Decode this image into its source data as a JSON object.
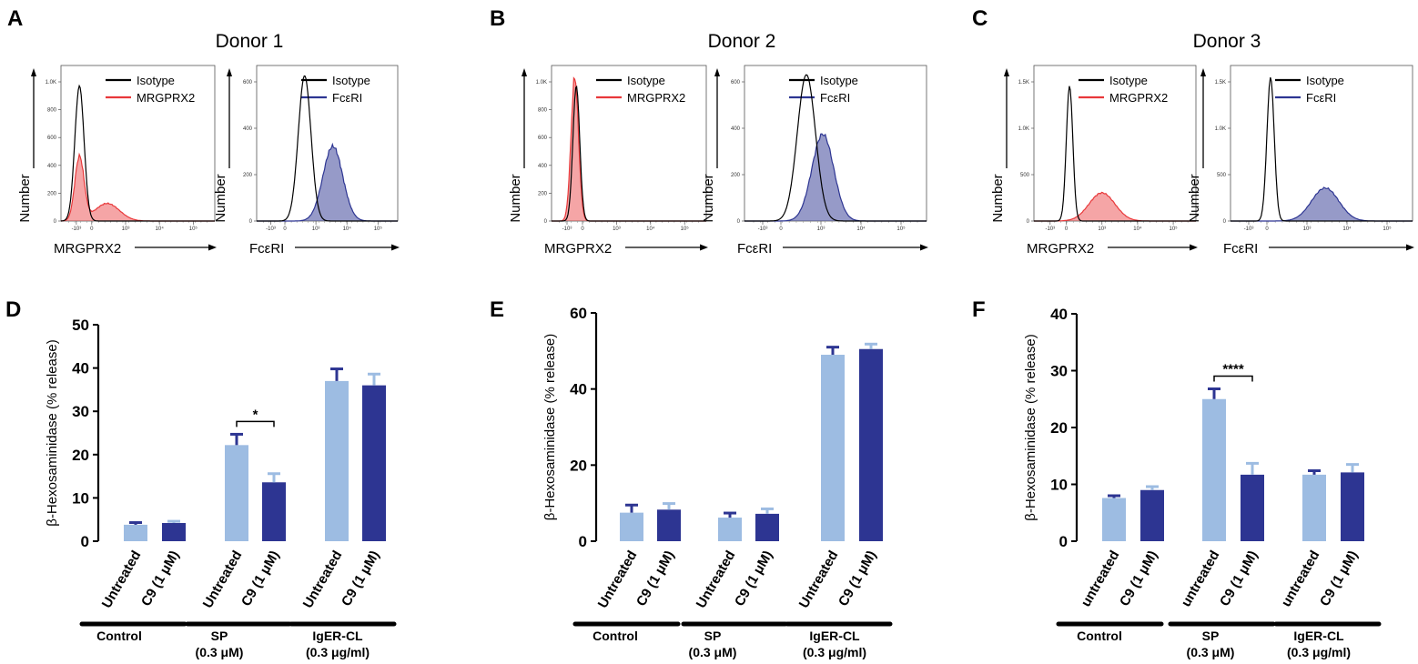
{
  "figure": {
    "panel_letters": [
      "A",
      "B",
      "C",
      "D",
      "E",
      "F"
    ]
  },
  "chart_data": [
    {
      "panel": "A",
      "type": "histogram",
      "title": "Donor 1",
      "histograms": [
        {
          "ylabel": "Number",
          "xlabel": "MRGPRX2",
          "y_ticks": [
            "1.0K",
            "800",
            "600",
            "400",
            "200",
            "0"
          ],
          "x_ticks": [
            "-10³",
            "0",
            "10³",
            "10⁴",
            "10⁵"
          ],
          "ymax": 1150,
          "series": [
            {
              "name": "Isotype",
              "color": "#000000",
              "fill": false,
              "center": 0.12,
              "width": 0.03,
              "peak": 1000
            },
            {
              "name": "MRGPRX2",
              "color": "#e8383a",
              "fill": true,
              "center": 0.12,
              "width": 0.03,
              "peak": 470,
              "shoulder_center": 0.3,
              "shoulder_width": 0.08,
              "shoulder_peak": 130
            }
          ]
        },
        {
          "ylabel": "Number",
          "xlabel": "FcεRI",
          "y_ticks": [
            "600",
            "400",
            "200",
            "0"
          ],
          "x_ticks": [
            "-10³",
            "0",
            "10³",
            "10⁴",
            "10⁵"
          ],
          "ymax": 760,
          "series": [
            {
              "name": "Isotype",
              "color": "#000000",
              "fill": false,
              "center": 0.34,
              "width": 0.045,
              "peak": 710
            },
            {
              "name": "FcεRI",
              "color": "#2d3592",
              "fill": true,
              "center": 0.54,
              "width": 0.07,
              "peak": 365
            }
          ]
        }
      ]
    },
    {
      "panel": "B",
      "type": "histogram",
      "title": "Donor 2",
      "histograms": [
        {
          "ylabel": "Number",
          "xlabel": "MRGPRX2",
          "y_ticks": [
            "1.0K",
            "800",
            "600",
            "400",
            "200",
            "0"
          ],
          "x_ticks": [
            "-10³",
            "0",
            "10³",
            "10⁴",
            "10⁵"
          ],
          "ymax": 1150,
          "series": [
            {
              "name": "Isotype",
              "color": "#000000",
              "fill": false,
              "center": 0.16,
              "width": 0.022,
              "peak": 1000
            },
            {
              "name": "MRGPRX2",
              "color": "#e8383a",
              "fill": true,
              "center": 0.15,
              "width": 0.024,
              "peak": 1060
            }
          ]
        },
        {
          "ylabel": "Number",
          "xlabel": "FcεRI",
          "y_ticks": [
            "600",
            "400",
            "200",
            "0"
          ],
          "x_ticks": [
            "-10³",
            "0",
            "10³",
            "10⁴",
            "10⁵"
          ],
          "ymax": 680,
          "series": [
            {
              "name": "Isotype",
              "color": "#000000",
              "fill": false,
              "center": 0.34,
              "width": 0.05,
              "peak": 640
            },
            {
              "name": "FcεRI",
              "color": "#2d3592",
              "fill": true,
              "center": 0.43,
              "width": 0.06,
              "peak": 380
            }
          ]
        }
      ]
    },
    {
      "panel": "C",
      "type": "histogram",
      "title": "Donor 3",
      "histograms": [
        {
          "ylabel": "Number",
          "xlabel": "MRGPRX2",
          "y_ticks": [
            "1.5K",
            "1.0K",
            "500",
            "0"
          ],
          "x_ticks": [
            "-10³",
            "0",
            "10³",
            "10⁴",
            "10⁵"
          ],
          "ymax": 1600,
          "series": [
            {
              "name": "Isotype",
              "color": "#000000",
              "fill": false,
              "center": 0.22,
              "width": 0.02,
              "peak": 1390
            },
            {
              "name": "MRGPRX2",
              "color": "#e8383a",
              "fill": true,
              "center": 0.42,
              "width": 0.08,
              "peak": 290
            }
          ]
        },
        {
          "ylabel": "Number",
          "xlabel": "FcεRI",
          "y_ticks": [
            "1.5K",
            "1.0K",
            "500",
            "0"
          ],
          "x_ticks": [
            "-10³",
            "0",
            "10³",
            "10⁴",
            "10⁵"
          ],
          "ymax": 1600,
          "series": [
            {
              "name": "Isotype",
              "color": "#000000",
              "fill": false,
              "center": 0.22,
              "width": 0.02,
              "peak": 1480
            },
            {
              "name": "FcεRI",
              "color": "#2d3592",
              "fill": true,
              "center": 0.52,
              "width": 0.075,
              "peak": 340
            }
          ]
        }
      ]
    },
    {
      "panel": "D",
      "type": "bar",
      "ylabel": "β-Hexosaminidase (% release)",
      "ylim": [
        0,
        50
      ],
      "y_ticks": [
        "0",
        "10",
        "20",
        "30",
        "40",
        "50"
      ],
      "categories": [
        "Untreated",
        "C9 (1 μM)",
        "Untreated",
        "C9 (1 μM)",
        "Untreated",
        "C9 (1 μM)"
      ],
      "values": [
        3.8,
        4.2,
        22.2,
        13.6,
        37.0,
        36.0
      ],
      "errors": [
        0.5,
        0.4,
        2.5,
        2.0,
        2.8,
        2.6
      ],
      "colors": [
        "#9dbce2",
        "#2d3592",
        "#9dbce2",
        "#2d3592",
        "#9dbce2",
        "#2d3592"
      ],
      "groups": [
        {
          "line1": "Control",
          "line2": ""
        },
        {
          "line1": "SP",
          "line2": "(0.3 μM)"
        },
        {
          "line1": "IgER-CL",
          "line2": "(0.3 μg/ml)"
        }
      ],
      "significance": [
        {
          "bars": [
            2,
            3
          ],
          "label": "*"
        }
      ]
    },
    {
      "panel": "E",
      "type": "bar",
      "ylabel": "β-Hexosaminidase (% release)",
      "ylim": [
        0,
        60
      ],
      "y_ticks": [
        "0",
        "20",
        "40",
        "60"
      ],
      "categories": [
        "Untreated",
        "C9 (1 μM)",
        "Untreated",
        "C9 (1 μM)",
        "Untreated",
        "C9 (1 μM)"
      ],
      "values": [
        7.5,
        8.3,
        6.2,
        7.2,
        49.0,
        50.5
      ],
      "errors": [
        2.0,
        1.6,
        1.2,
        1.3,
        2.0,
        1.3
      ],
      "colors": [
        "#9dbce2",
        "#2d3592",
        "#9dbce2",
        "#2d3592",
        "#9dbce2",
        "#2d3592"
      ],
      "groups": [
        {
          "line1": "Control",
          "line2": ""
        },
        {
          "line1": "SP",
          "line2": "(0.3 μM)"
        },
        {
          "line1": "IgER-CL",
          "line2": "(0.3 μg/ml)"
        }
      ],
      "significance": []
    },
    {
      "panel": "F",
      "type": "bar",
      "ylabel": "β-Hexosaminidase (% release)",
      "ylim": [
        0,
        40
      ],
      "y_ticks": [
        "0",
        "10",
        "20",
        "30",
        "40"
      ],
      "categories": [
        "untreated",
        "C9 (1 μM)",
        "untreated",
        "C9 (1 μM)",
        "untreated",
        "C9 (1 μM)"
      ],
      "values": [
        7.6,
        9.0,
        25.0,
        11.7,
        11.7,
        12.1
      ],
      "errors": [
        0.4,
        0.6,
        1.8,
        2.0,
        0.7,
        1.4
      ],
      "colors": [
        "#9dbce2",
        "#2d3592",
        "#9dbce2",
        "#2d3592",
        "#9dbce2",
        "#2d3592"
      ],
      "groups": [
        {
          "line1": "Control",
          "line2": ""
        },
        {
          "line1": "SP",
          "line2": "(0.3 μM)"
        },
        {
          "line1": "IgER-CL",
          "line2": "(0.3 μg/ml)"
        }
      ],
      "significance": [
        {
          "bars": [
            2,
            3
          ],
          "label": "****"
        }
      ]
    }
  ]
}
